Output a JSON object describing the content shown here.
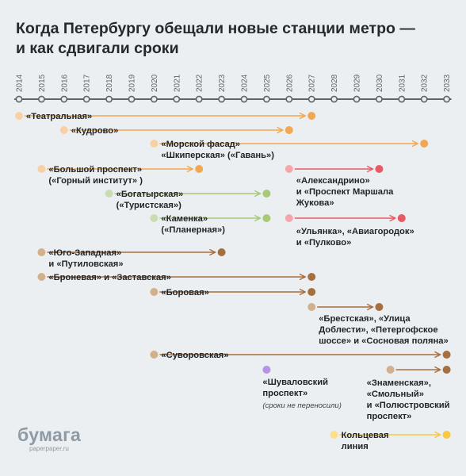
{
  "title": {
    "line1": "Когда Петербургу обещали новые станции метро —",
    "line2": "и как сдвигали сроки"
  },
  "logo": {
    "name": "бумага",
    "url": "paperpaper.ru"
  },
  "colors": {
    "peach": "#f2a750",
    "peach_light": "#f8d0a6",
    "red": "#e85a63",
    "red_light": "#f4a6ab",
    "green": "#a6c97a",
    "green_light": "#c9dcb2",
    "brown": "#a76f3e",
    "brown_light": "#d2b08c",
    "purple": "#b593e6",
    "yellow": "#f9c83f",
    "yellow_light": "#fbdf8c",
    "axis": "#5d646b"
  },
  "chart_data": {
    "type": "timeline",
    "title": "Когда Петербургу обещали новые станции метро — и как сдвигали сроки",
    "years": [
      2014,
      2015,
      2016,
      2017,
      2018,
      2019,
      2020,
      2021,
      2022,
      2023,
      2024,
      2025,
      2026,
      2027,
      2028,
      2029,
      2030,
      2031,
      2032,
      2033
    ],
    "stations": [
      {
        "label": [
          "«Театральная»"
        ],
        "first_promise": 2014,
        "current_deadline": 2027,
        "color": "peach"
      },
      {
        "label": [
          "«Кудрово»"
        ],
        "first_promise": 2016,
        "current_deadline": 2026,
        "color": "peach"
      },
      {
        "label": [
          "«Морской фасад»",
          "«Шкиперская» («Гавань»)"
        ],
        "first_promise": 2020,
        "current_deadline": 2032,
        "color": "peach"
      },
      {
        "label": [
          "«Большой проспект»",
          "(«Горный институт» )"
        ],
        "first_promise": 2015,
        "current_deadline": 2022,
        "color": "peach"
      },
      {
        "label": [
          "«Александрино»",
          "и «Проспект Маршала",
          "Жукова»"
        ],
        "first_promise": 2026,
        "current_deadline": 2030,
        "color": "red"
      },
      {
        "label": [
          "«Богатырская»",
          "(«Туристская»)"
        ],
        "first_promise": 2018,
        "current_deadline": 2025,
        "color": "green"
      },
      {
        "label": [
          "«Каменка»",
          "(«Планерная»)"
        ],
        "first_promise": 2020,
        "current_deadline": 2025,
        "color": "green"
      },
      {
        "label": [
          "«Ульянка», «Авиагородок»",
          "и «Пулково»"
        ],
        "first_promise": 2026,
        "current_deadline": 2031,
        "color": "red"
      },
      {
        "label": [
          "«Юго-Западная»",
          "и «Путиловская»"
        ],
        "first_promise": 2015,
        "current_deadline": 2023,
        "color": "brown"
      },
      {
        "label": [
          "«Броневая» и «Заставская»"
        ],
        "first_promise": 2015,
        "current_deadline": 2027,
        "color": "brown"
      },
      {
        "label": [
          "«Боровая»"
        ],
        "first_promise": 2020,
        "current_deadline": 2027,
        "color": "brown"
      },
      {
        "label": [
          "«Брестская», «Улица",
          "Доблести», «Петергофское",
          "шоссе» и «Сосновая поляна»"
        ],
        "first_promise": 2027,
        "current_deadline": 2030,
        "color": "brown"
      },
      {
        "label": [
          "«Суворовская»"
        ],
        "first_promise": 2020,
        "current_deadline": 2033,
        "color": "brown"
      },
      {
        "label": [
          "«Шуваловский",
          "проспект»"
        ],
        "note": "(сроки не переносили)",
        "first_promise": 2025,
        "current_deadline": null,
        "color": "purple"
      },
      {
        "label": [
          "«Знаменская»,",
          "«Смольный»",
          "и «Полюстровский",
          "проспект»"
        ],
        "first_promise": 2030.5,
        "current_deadline": 2033,
        "color": "brown"
      },
      {
        "label": [
          "Кольцевая",
          "линия"
        ],
        "first_promise": 2028,
        "current_deadline": 2033,
        "color": "yellow"
      }
    ]
  }
}
